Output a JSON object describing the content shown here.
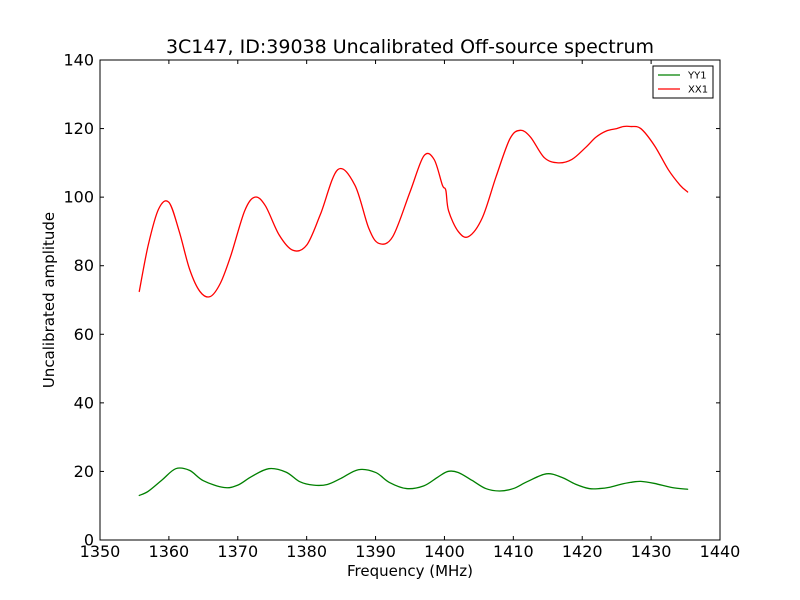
{
  "chart_data": {
    "type": "line",
    "title": "3C147, ID:39038 Uncalibrated Off-source spectrum",
    "xlabel": "Frequency (MHz)",
    "ylabel": "Uncalibrated amplitude",
    "xlim": [
      1350,
      1440
    ],
    "ylim": [
      0,
      140
    ],
    "xticks": [
      1350,
      1360,
      1370,
      1380,
      1390,
      1400,
      1410,
      1420,
      1430,
      1440
    ],
    "yticks": [
      0,
      20,
      40,
      60,
      80,
      100,
      120,
      140
    ],
    "grid": false,
    "legend_position": "top-right",
    "series": [
      {
        "name": "YY1",
        "color": "#008000",
        "x": [
          1355.7,
          1357,
          1359,
          1361,
          1363,
          1365,
          1368,
          1370,
          1372,
          1374.5,
          1377,
          1379,
          1381,
          1383,
          1385,
          1387.5,
          1390,
          1392,
          1394.5,
          1397,
          1399,
          1400.5,
          1402,
          1404,
          1406,
          1408,
          1410,
          1412,
          1414.8,
          1417,
          1419,
          1421,
          1422.5,
          1424,
          1425.5,
          1427,
          1428.5,
          1430.5,
          1433,
          1435.3
        ],
        "y": [
          13,
          14.2,
          17.5,
          20.8,
          20.3,
          17.3,
          15.3,
          16,
          18.5,
          20.8,
          19.8,
          17,
          16,
          16.2,
          18,
          20.5,
          19.7,
          16.8,
          15,
          15.8,
          18.3,
          20,
          19.7,
          17.4,
          15,
          14.3,
          15,
          17,
          19.3,
          18.3,
          16.3,
          15,
          15,
          15.4,
          16.2,
          16.8,
          17.1,
          16.5,
          15.3,
          14.8
        ]
      },
      {
        "name": "XX1",
        "color": "#ff0000",
        "x": [
          1355.7,
          1357,
          1358.5,
          1360,
          1361.5,
          1363,
          1364.5,
          1366,
          1367.5,
          1369,
          1371,
          1372.5,
          1374,
          1376,
          1378,
          1380,
          1382,
          1384.5,
          1387,
          1389,
          1390.5,
          1392.5,
          1395,
          1397,
          1398.5,
          1399.7,
          1400.2,
          1400.6,
          1402,
          1403.5,
          1405.5,
          1407.5,
          1409.5,
          1411,
          1412.5,
          1414.5,
          1416.5,
          1418.5,
          1420.5,
          1422,
          1423.5,
          1425,
          1426,
          1427,
          1428.5,
          1430.5,
          1432.5,
          1434.2,
          1435.3
        ],
        "y": [
          72.5,
          86,
          96.5,
          98.5,
          90,
          79,
          72.5,
          71,
          75,
          83,
          96,
          100,
          97.5,
          89,
          84.5,
          86,
          95,
          108,
          103.5,
          91,
          86.5,
          88.5,
          101.5,
          112,
          111,
          103.5,
          102,
          96,
          90,
          88.5,
          94,
          106,
          117,
          119.5,
          117.5,
          111.5,
          110,
          111,
          114.5,
          117.5,
          119.3,
          120,
          120.6,
          120.6,
          120,
          115,
          108,
          103.5,
          101.5
        ]
      }
    ]
  }
}
